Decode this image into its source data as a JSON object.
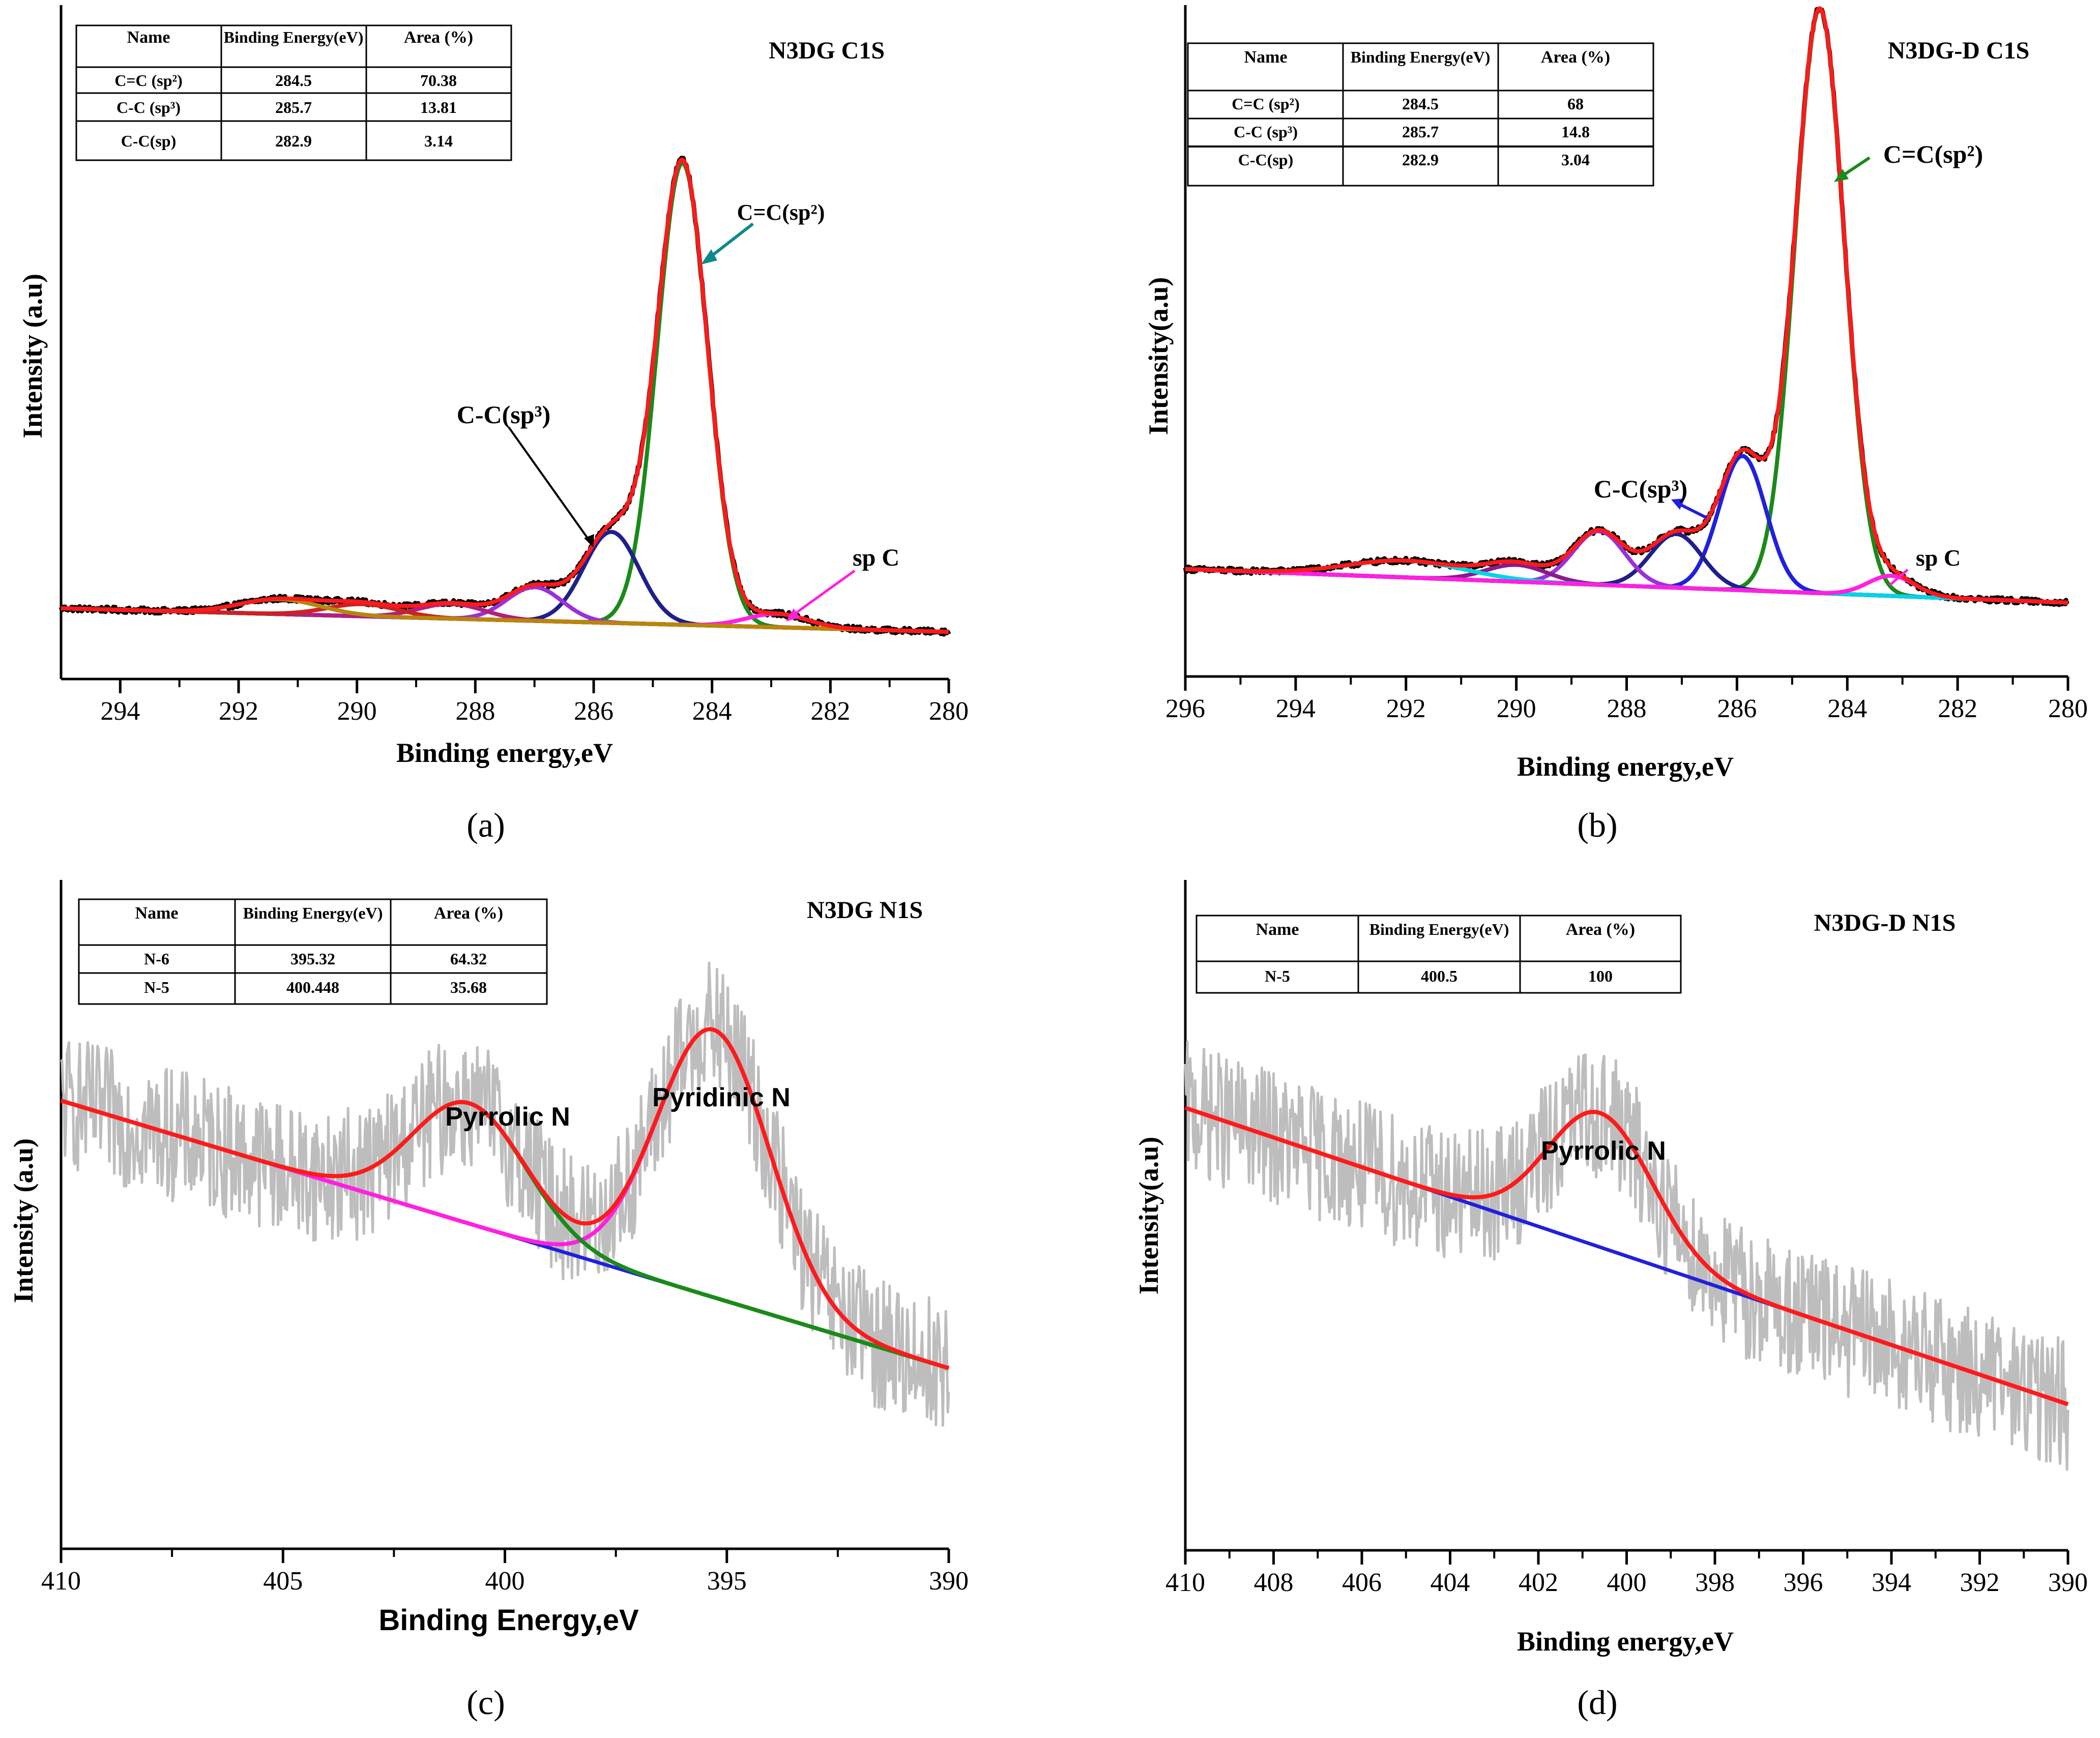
{
  "figure": {
    "panels": [
      {
        "id": "a",
        "caption": "(a)",
        "title": "N3DG C1S",
        "xlabel": "Binding energy,eV",
        "ylabel": "Intensity (a.u)",
        "xlim": [
          295,
          280
        ],
        "ylim": [
          0,
          1
        ],
        "xticks": [
          294,
          292,
          290,
          288,
          286,
          284,
          282,
          280
        ],
        "table": {
          "headers": [
            "Name",
            "Binding Energy(eV)",
            "Area (%)"
          ],
          "rows": [
            [
              "C=C (sp²)",
              "284.5",
              "70.38"
            ],
            [
              "C-C (sp³)",
              "285.7",
              "13.81"
            ],
            [
              "C-C(sp)",
              "282.9",
              "3.14"
            ]
          ]
        },
        "annotations": [
          {
            "text": "C=C(sp²)",
            "target": [
              284.5,
              0.74
            ]
          },
          {
            "text": "C-C(sp³)",
            "target": [
              286.0,
              0.24
            ]
          },
          {
            "text": "sp C",
            "target": [
              282.9,
              0.06
            ]
          }
        ]
      },
      {
        "id": "b",
        "caption": "(b)",
        "title": "N3DG-D C1S",
        "xlabel": "Binding energy,eV",
        "ylabel": "Intensity(a.u)",
        "xlim": [
          296,
          280
        ],
        "ylim": [
          0,
          1
        ],
        "xticks": [
          296,
          294,
          292,
          290,
          288,
          286,
          284,
          282,
          280
        ],
        "table": {
          "headers": [
            "Name",
            "Binding Energy(eV)",
            "Area (%)"
          ],
          "rows": [
            [
              "C=C (sp²)",
              "284.5",
              "68"
            ],
            [
              "C-C (sp³)",
              "285.7",
              "14.8"
            ],
            [
              "C-C(sp)",
              "282.9",
              "3.04"
            ]
          ]
        },
        "annotations": [
          {
            "text": "C=C(sp²)",
            "target": [
              284.5,
              0.9
            ]
          },
          {
            "text": "C-C(sp³)",
            "target": [
              286.0,
              0.32
            ]
          },
          {
            "text": "sp C",
            "target": [
              283.2,
              0.1
            ]
          }
        ]
      },
      {
        "id": "c",
        "caption": "(c)",
        "title": "N3DG N1S",
        "xlabel": "Binding Energy,eV",
        "ylabel": "Intensity (a.u)",
        "xlim": [
          410,
          390
        ],
        "ylim": [
          0,
          1
        ],
        "xticks": [
          410,
          405,
          400,
          395,
          390
        ],
        "table": {
          "headers": [
            "Name",
            "Binding Energy(eV)",
            "Area (%)"
          ],
          "rows": [
            [
              "N-6",
              "395.32",
              "64.32"
            ],
            [
              "N-5",
              "400.448",
              "35.68"
            ]
          ]
        },
        "annotations": [
          {
            "text": "Pyrrolic N",
            "target": [
              400.8,
              0.7
            ]
          },
          {
            "text": "Pyridinic N",
            "target": [
              395.2,
              0.8
            ]
          }
        ]
      },
      {
        "id": "d",
        "caption": "(d)",
        "title": "N3DG-D N1S",
        "xlabel": "Binding energy,eV",
        "ylabel": "Intensity(a.u)",
        "xlim": [
          410,
          390
        ],
        "ylim": [
          0,
          1
        ],
        "xticks": [
          410,
          408,
          406,
          404,
          402,
          400,
          398,
          396,
          394,
          392,
          390
        ],
        "table": {
          "headers": [
            "Name",
            "Binding Energy(eV)",
            "Area (%)"
          ],
          "rows": [
            [
              "N-5",
              "400.5",
              "100"
            ]
          ]
        },
        "annotations": [
          {
            "text": "Pyrrolic N",
            "target": [
              400.6,
              0.7
            ]
          }
        ]
      }
    ]
  },
  "chart_data": [
    {
      "type": "line",
      "panel": "a",
      "title": "N3DG C1S",
      "xlabel": "Binding energy,eV",
      "ylabel": "Intensity (a.u)",
      "xlim": [
        295,
        280
      ],
      "ylim": [
        0,
        1
      ],
      "background": {
        "type": "linear",
        "points": [
          [
            295,
            0.105
          ],
          [
            280,
            0.07
          ]
        ]
      },
      "series": [
        {
          "name": "Experimental",
          "role": "data",
          "color": "#000000",
          "noise": 0.004
        },
        {
          "name": "Fit envelope",
          "role": "envelope",
          "color": "#ff1a1a"
        },
        {
          "name": "C=C (sp2)",
          "role": "peak",
          "color": "#1a8a1a",
          "center": 284.5,
          "height": 0.685,
          "fwhm": 1.0
        },
        {
          "name": "C-C (sp3)",
          "role": "peak",
          "color": "#1f1f8c",
          "center": 285.7,
          "height": 0.135,
          "fwhm": 1.1
        },
        {
          "name": "sp C",
          "role": "peak",
          "color": "#ff20e0",
          "center": 282.9,
          "height": 0.02,
          "fwhm": 1.2
        },
        {
          "name": "Peak 287.0",
          "role": "peak",
          "color": "#9b30d9",
          "center": 287.0,
          "height": 0.05,
          "fwhm": 1.1
        },
        {
          "name": "Peak 288.4",
          "role": "peak",
          "color": "#b02080",
          "center": 288.4,
          "height": 0.022,
          "fwhm": 1.3
        },
        {
          "name": "Peak 289.9",
          "role": "peak",
          "color": "#cc2222",
          "center": 289.9,
          "height": 0.018,
          "fwhm": 1.4
        },
        {
          "name": "Peak 291.3",
          "role": "peak",
          "color": "#b8860b",
          "center": 291.3,
          "height": 0.022,
          "fwhm": 1.6
        },
        {
          "name": "Background",
          "role": "background",
          "color": "#808000"
        }
      ]
    },
    {
      "type": "line",
      "panel": "b",
      "title": "N3DG-D C1S",
      "xlabel": "Binding energy,eV",
      "ylabel": "Intensity(a.u)",
      "xlim": [
        296,
        280
      ],
      "ylim": [
        0,
        1
      ],
      "background": {
        "type": "linear",
        "points": [
          [
            296,
            0.16
          ],
          [
            280,
            0.11
          ]
        ]
      },
      "series": [
        {
          "name": "Experimental",
          "role": "data",
          "color": "#000000",
          "noise": 0.004
        },
        {
          "name": "Fit envelope",
          "role": "envelope",
          "color": "#ff1a1a"
        },
        {
          "name": "C=C (sp2)",
          "role": "peak",
          "color": "#1a8a1a",
          "center": 284.5,
          "height": 0.87,
          "fwhm": 1.05
        },
        {
          "name": "C-C (sp3)",
          "role": "peak",
          "color": "#2020dd",
          "center": 285.9,
          "height": 0.2,
          "fwhm": 1.0
        },
        {
          "name": "Peak 287.1",
          "role": "peak",
          "color": "#1f1f8c",
          "center": 287.1,
          "height": 0.08,
          "fwhm": 1.1
        },
        {
          "name": "Peak 288.5",
          "role": "peak",
          "color": "#9b30d9",
          "center": 288.5,
          "height": 0.08,
          "fwhm": 1.1
        },
        {
          "name": "Peak 290.0",
          "role": "peak",
          "color": "#8b1a8b",
          "center": 290.0,
          "height": 0.025,
          "fwhm": 1.3
        },
        {
          "name": "Peak 292.0",
          "role": "peak",
          "color": "#00d5e8",
          "center": 292.0,
          "height": 0.025,
          "fwhm": 2.5
        },
        {
          "name": "sp C",
          "role": "peak",
          "color": "#ff20e0",
          "center": 283.2,
          "height": 0.03,
          "fwhm": 1.0
        },
        {
          "name": "Background",
          "role": "background",
          "color": "#ff20e0"
        }
      ]
    },
    {
      "type": "line",
      "panel": "c",
      "title": "N3DG N1S",
      "xlabel": "Binding Energy,eV",
      "ylabel": "Intensity (a.u)",
      "xlim": [
        410,
        390
      ],
      "ylim": [
        0,
        1
      ],
      "background": {
        "type": "linear",
        "points": [
          [
            410,
            0.67
          ],
          [
            390,
            0.27
          ]
        ]
      },
      "series": [
        {
          "name": "Experimental",
          "role": "data",
          "color": "#bdbdbd",
          "noise": 0.1
        },
        {
          "name": "Fit envelope",
          "role": "envelope",
          "color": "#ff1a1a"
        },
        {
          "name": "N-6 Pyridinic N",
          "role": "peak",
          "color": "#ff20e0",
          "center": 395.3,
          "height": 0.4,
          "fwhm": 3.0
        },
        {
          "name": "N-5 Pyrrolic N",
          "role": "peak",
          "color": "#1a8a1a",
          "center": 400.8,
          "height": 0.18,
          "fwhm": 3.0
        },
        {
          "name": "Background",
          "role": "background",
          "color": "#2020dd"
        }
      ]
    },
    {
      "type": "line",
      "panel": "d",
      "title": "N3DG-D N1S",
      "xlabel": "Binding energy,eV",
      "ylabel": "Intensity(a.u)",
      "xlim": [
        410,
        390
      ],
      "ylim": [
        0,
        1
      ],
      "background": {
        "type": "linear",
        "points": [
          [
            410,
            0.66
          ],
          [
            391,
            0.24
          ]
        ]
      },
      "series": [
        {
          "name": "Experimental",
          "role": "data",
          "color": "#bdbdbd",
          "noise": 0.1
        },
        {
          "name": "Fit envelope",
          "role": "envelope",
          "color": "#ff1a1a"
        },
        {
          "name": "N-5 Pyrrolic N",
          "role": "peak",
          "color": "#ff1a1a",
          "center": 400.6,
          "height": 0.2,
          "fwhm": 2.8
        },
        {
          "name": "Background",
          "role": "background",
          "color": "#2020dd"
        }
      ]
    }
  ]
}
